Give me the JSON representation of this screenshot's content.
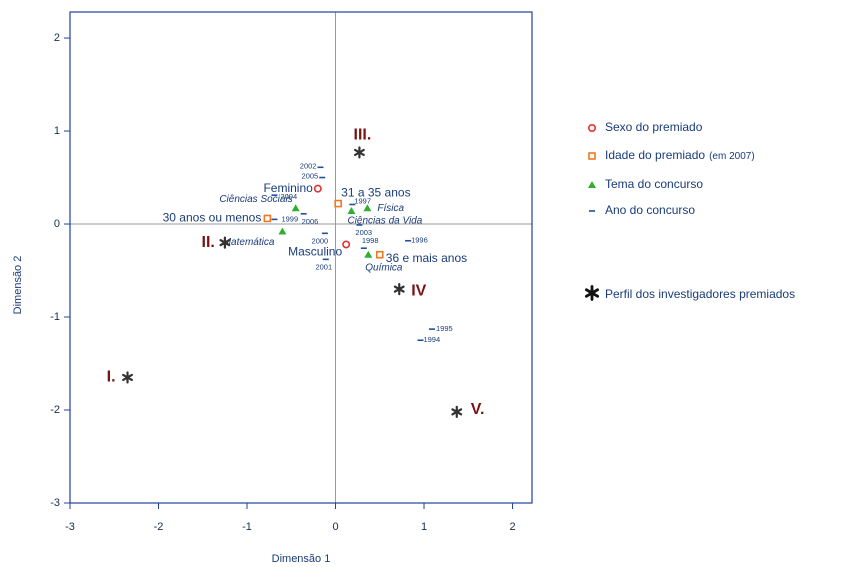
{
  "chart_data": {
    "type": "scatter",
    "x_label": "Dimensão 1",
    "y_label": "Dimensão 2",
    "xlim": [
      -3,
      2.22
    ],
    "ylim": [
      -3,
      2.28
    ],
    "xticks": [
      -3,
      -2,
      -1,
      0,
      1,
      2
    ],
    "yticks": [
      -3,
      -2,
      -1,
      0,
      1,
      2
    ],
    "zero_lines": true,
    "series": [
      {
        "name": "Sexo do premiado",
        "marker": "circle",
        "color": "#e03030",
        "labels": [
          "Feminino",
          "Masculino"
        ],
        "x": [
          -0.2,
          0.12
        ],
        "y": [
          0.38,
          -0.22
        ]
      },
      {
        "name": "Idade do premiado",
        "name_suffix": "(em 2007)",
        "marker": "square",
        "color": "#f07820",
        "labels": [
          "31 a 35 anos",
          "30 anos ou menos",
          "36 e mais anos"
        ],
        "x": [
          0.03,
          -0.77,
          0.5
        ],
        "y": [
          0.22,
          0.06,
          -0.33
        ]
      },
      {
        "name": "Tema do concurso",
        "marker": "triangle",
        "color": "#30b030",
        "labels": [
          "Ciências Sociais",
          "Física",
          "Ciências da Vida",
          "Matemática",
          "Química"
        ],
        "x": [
          -0.45,
          0.36,
          0.18,
          -0.6,
          0.37
        ],
        "y": [
          0.17,
          0.17,
          0.14,
          -0.08,
          -0.33
        ]
      },
      {
        "name": "Ano do concurso",
        "marker": "dash",
        "color": "#2050a0",
        "labels": [
          "2002",
          "2005",
          "2004",
          "1999",
          "2006",
          "1997",
          "2003",
          "1998",
          "1996",
          "2000",
          "2001",
          "1995",
          "1994"
        ],
        "x": [
          -0.17,
          -0.15,
          -0.69,
          -0.69,
          -0.36,
          0.19,
          0.27,
          0.32,
          0.82,
          -0.12,
          -0.11,
          1.09,
          0.96
        ],
        "y": [
          0.61,
          0.5,
          0.31,
          0.05,
          0.11,
          0.21,
          -0.01,
          -0.26,
          -0.18,
          -0.1,
          -0.38,
          -1.13,
          -1.25
        ]
      },
      {
        "name": "Perfil dos investigadores premiados",
        "marker": "asterisk",
        "color": "#333333",
        "labels": [
          "I.",
          "II.",
          "III.",
          "IV",
          "V."
        ],
        "x": [
          -2.35,
          -1.25,
          0.27,
          0.72,
          1.37
        ],
        "y": [
          -1.65,
          -0.2,
          0.77,
          -0.7,
          -2.02
        ]
      }
    ]
  }
}
